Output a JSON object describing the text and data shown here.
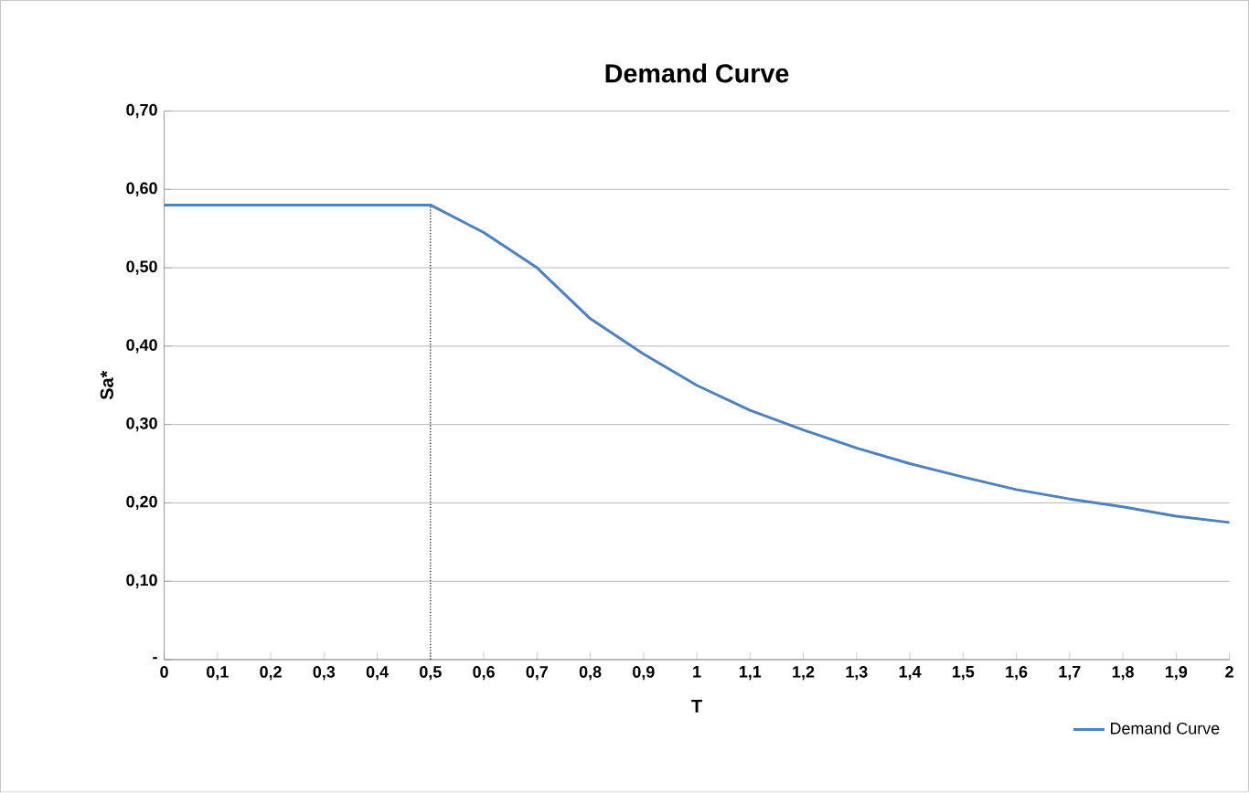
{
  "chart_data": {
    "type": "line",
    "title": "Demand Curve",
    "xlabel": "T",
    "ylabel": "Sa*",
    "xlim": [
      0,
      2
    ],
    "ylim": [
      0,
      0.7
    ],
    "xticks": [
      0,
      {
        "value": 0.1,
        "label": "0,1"
      },
      {
        "value": 0.2,
        "label": "0,2"
      },
      {
        "value": 0.3,
        "label": "0,3"
      },
      {
        "value": 0.4,
        "label": "0,4"
      },
      {
        "value": 0.5,
        "label": "0,5"
      },
      {
        "value": 0.6,
        "label": "0,6"
      },
      {
        "value": 0.7,
        "label": "0,7"
      },
      {
        "value": 0.8,
        "label": "0,8"
      },
      {
        "value": 0.9,
        "label": "0,9"
      },
      1,
      {
        "value": 1.1,
        "label": "1,1"
      },
      {
        "value": 1.2,
        "label": "1,2"
      },
      {
        "value": 1.3,
        "label": "1,3"
      },
      {
        "value": 1.4,
        "label": "1,4"
      },
      {
        "value": 1.5,
        "label": "1,5"
      },
      {
        "value": 1.6,
        "label": "1,6"
      },
      {
        "value": 1.7,
        "label": "1,7"
      },
      {
        "value": 1.8,
        "label": "1,8"
      },
      {
        "value": 1.9,
        "label": "1,9"
      },
      2
    ],
    "yticks": [
      {
        "value": 0,
        "label": "-"
      },
      {
        "value": 0.1,
        "label": "0,10"
      },
      {
        "value": 0.2,
        "label": "0,20"
      },
      {
        "value": 0.3,
        "label": "0,30"
      },
      {
        "value": 0.4,
        "label": "0,40"
      },
      {
        "value": 0.5,
        "label": "0,50"
      },
      {
        "value": 0.6,
        "label": "0,60"
      },
      {
        "value": 0.7,
        "label": "0,70"
      }
    ],
    "grid": "y",
    "legend": "bottom right",
    "marker": "none",
    "series": [
      {
        "name": "Demand Curve",
        "color": "#4f81bd",
        "line_style": "solid",
        "x": [
          0,
          0.1,
          0.2,
          0.3,
          0.4,
          0.5,
          0.6,
          0.7,
          0.8,
          0.9,
          1,
          1.1,
          1.2,
          1.3,
          1.4,
          1.5,
          1.6,
          1.7,
          1.8,
          1.9,
          2
        ],
        "values": [
          0.58,
          0.58,
          0.58,
          0.58,
          0.58,
          0.58,
          0.545,
          0.5,
          0.435,
          0.39,
          0.35,
          0.318,
          0.293,
          0.27,
          0.25,
          0.233,
          0.217,
          0.205,
          0.195,
          0.183,
          0.175
        ]
      },
      {
        "color": "#000000",
        "line_style": "dotted",
        "x": [
          0.5,
          0.5
        ],
        "values": [
          0,
          0.58
        ]
      }
    ]
  }
}
